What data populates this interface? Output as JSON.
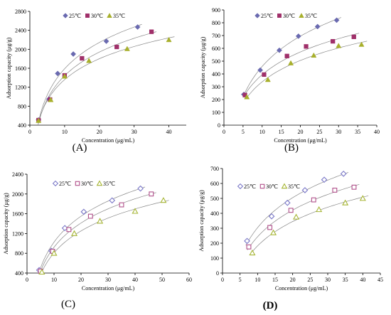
{
  "colors": {
    "c25": "#6a6ab0",
    "c30": "#a0306a",
    "c35": "#a8b02c",
    "open25": "#7b79c8",
    "open30": "#b04f8a",
    "open35": "#a6b534",
    "fit": "#888888"
  },
  "chart_data": [
    {
      "panel_label": "(A)",
      "type": "scatter",
      "xlabel": "Concentration (μg/mL)",
      "ylabel": "Adsorption capacity (μg/g)",
      "xlim": [
        0,
        45
      ],
      "ylim": [
        400,
        2800
      ],
      "xticks": [
        "0",
        "10",
        "20",
        "30",
        "40"
      ],
      "yticks": [
        "400",
        "800",
        "1200",
        "1600",
        "2000",
        "2400",
        "2800"
      ],
      "marker_style": "filled",
      "series": [
        {
          "name": "25℃",
          "marker": "diamond",
          "x": [
            2.5,
            5.5,
            8,
            12.5,
            22,
            31
          ],
          "y": [
            510,
            950,
            1490,
            1900,
            2170,
            2470
          ]
        },
        {
          "name": "30℃",
          "marker": "square",
          "x": [
            2.5,
            5.8,
            10,
            15,
            25,
            35
          ],
          "y": [
            505,
            940,
            1450,
            1810,
            2050,
            2370
          ]
        },
        {
          "name": "35℃",
          "marker": "triangle",
          "x": [
            2.5,
            6,
            10,
            17,
            28,
            40
          ],
          "y": [
            495,
            935,
            1430,
            1760,
            2010,
            2200
          ]
        }
      ]
    },
    {
      "panel_label": "(B)",
      "type": "scatter",
      "xlabel": "Concentration (μg/mL)",
      "ylabel": "Adsorption capacity (μg/g)",
      "xlim": [
        0,
        40
      ],
      "ylim": [
        0,
        900
      ],
      "xticks": [
        "0",
        "5",
        "10",
        "15",
        "20",
        "25",
        "30",
        "35",
        "40"
      ],
      "yticks": [
        "0",
        "100",
        "200",
        "300",
        "400",
        "500",
        "600",
        "700",
        "800",
        "900"
      ],
      "marker_style": "filled",
      "series": [
        {
          "name": "25℃",
          "marker": "diamond",
          "x": [
            5.2,
            9.5,
            14.5,
            19.5,
            24.5,
            29.5
          ],
          "y": [
            240,
            430,
            585,
            695,
            770,
            820
          ]
        },
        {
          "name": "30℃",
          "marker": "square",
          "x": [
            5.5,
            10.5,
            16.5,
            21.5,
            28.5,
            34
          ],
          "y": [
            235,
            395,
            540,
            615,
            655,
            690
          ]
        },
        {
          "name": "35℃",
          "marker": "triangle",
          "x": [
            6,
            11.5,
            17.5,
            23.5,
            30,
            36
          ],
          "y": [
            220,
            355,
            485,
            545,
            620,
            630
          ]
        }
      ]
    },
    {
      "panel_label": "(C)",
      "type": "scatter",
      "xlabel": "Concentration (μg/mL)",
      "ylabel": "Adsorption capacity (μg/g)",
      "xlim": [
        0,
        60
      ],
      "ylim": [
        400,
        2400
      ],
      "xticks": [
        "0",
        "10",
        "20",
        "30",
        "40",
        "50",
        "60"
      ],
      "yticks": [
        "400",
        "800",
        "1200",
        "1600",
        "2000",
        "2400"
      ],
      "marker_style": "open",
      "series": [
        {
          "name": "25℃",
          "marker": "diamond",
          "x": [
            4.5,
            9,
            14,
            21,
            31.5,
            42
          ],
          "y": [
            460,
            850,
            1310,
            1640,
            1870,
            2110
          ]
        },
        {
          "name": "30℃",
          "marker": "square",
          "x": [
            5,
            9.5,
            15.5,
            23.5,
            35,
            46
          ],
          "y": [
            440,
            840,
            1280,
            1550,
            1780,
            2000
          ]
        },
        {
          "name": "35℃",
          "marker": "triangle",
          "x": [
            5.5,
            10,
            17.5,
            27,
            40,
            50.5
          ],
          "y": [
            420,
            800,
            1200,
            1450,
            1650,
            1870
          ]
        }
      ]
    },
    {
      "panel_label": "(D)",
      "type": "scatter",
      "xlabel": "Concentration (μg/mL)",
      "ylabel": "Adsorption capacity (μg/g)",
      "xlim": [
        0,
        45
      ],
      "ylim": [
        0,
        700
      ],
      "xticks": [
        "0",
        "5",
        "10",
        "15",
        "20",
        "25",
        "30",
        "35",
        "40",
        "45"
      ],
      "yticks": [
        "0",
        "100",
        "200",
        "300",
        "400",
        "500",
        "600",
        "700"
      ],
      "marker_style": "open",
      "series": [
        {
          "name": "25℃",
          "marker": "diamond",
          "x": [
            7,
            14,
            18.5,
            23.5,
            29,
            34.5
          ],
          "y": [
            215,
            380,
            470,
            555,
            625,
            665
          ]
        },
        {
          "name": "30℃",
          "marker": "square",
          "x": [
            7.5,
            13.5,
            19.5,
            26,
            32,
            37.5
          ],
          "y": [
            175,
            305,
            420,
            490,
            555,
            575
          ]
        },
        {
          "name": "35℃",
          "marker": "triangle",
          "x": [
            8.5,
            14.5,
            21,
            27.5,
            35,
            40
          ],
          "y": [
            135,
            270,
            375,
            425,
            470,
            500
          ]
        }
      ]
    }
  ]
}
